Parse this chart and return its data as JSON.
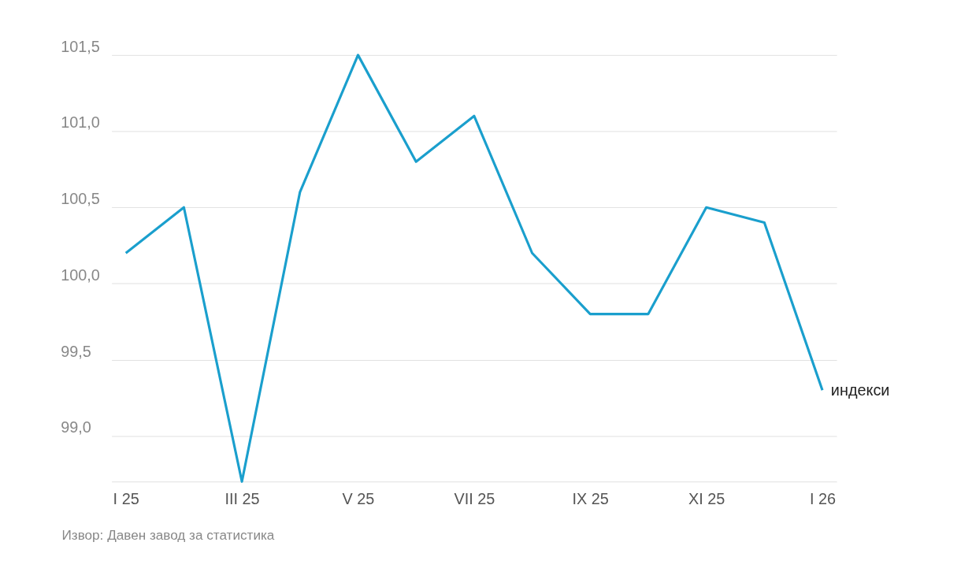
{
  "chart_data": {
    "type": "line",
    "categories": [
      "I 25",
      null,
      "III 25",
      null,
      "V 25",
      null,
      "VII 25",
      null,
      "IX 25",
      null,
      "XI 25",
      null,
      "I 26"
    ],
    "series": [
      {
        "name": "индекси",
        "color": "#1a9fcd",
        "values": [
          100.2,
          100.5,
          98.7,
          100.6,
          101.5,
          100.8,
          101.1,
          100.2,
          99.8,
          99.8,
          100.5,
          100.4,
          99.3
        ]
      }
    ],
    "ylim": [
      98.7,
      101.5
    ],
    "yticks": [
      {
        "value": 99,
        "label": "99,0"
      },
      {
        "value": 99.5,
        "label": "99,5"
      },
      {
        "value": 100,
        "label": "100,0"
      },
      {
        "value": 100.5,
        "label": "100,5"
      },
      {
        "value": 101,
        "label": "101,0"
      },
      {
        "value": 101.5,
        "label": "101,5"
      }
    ],
    "grid": "y",
    "legend": false,
    "marker": "none",
    "line_style": "solid",
    "annotations": [
      "Извор: Давен завод за статистика"
    ]
  }
}
